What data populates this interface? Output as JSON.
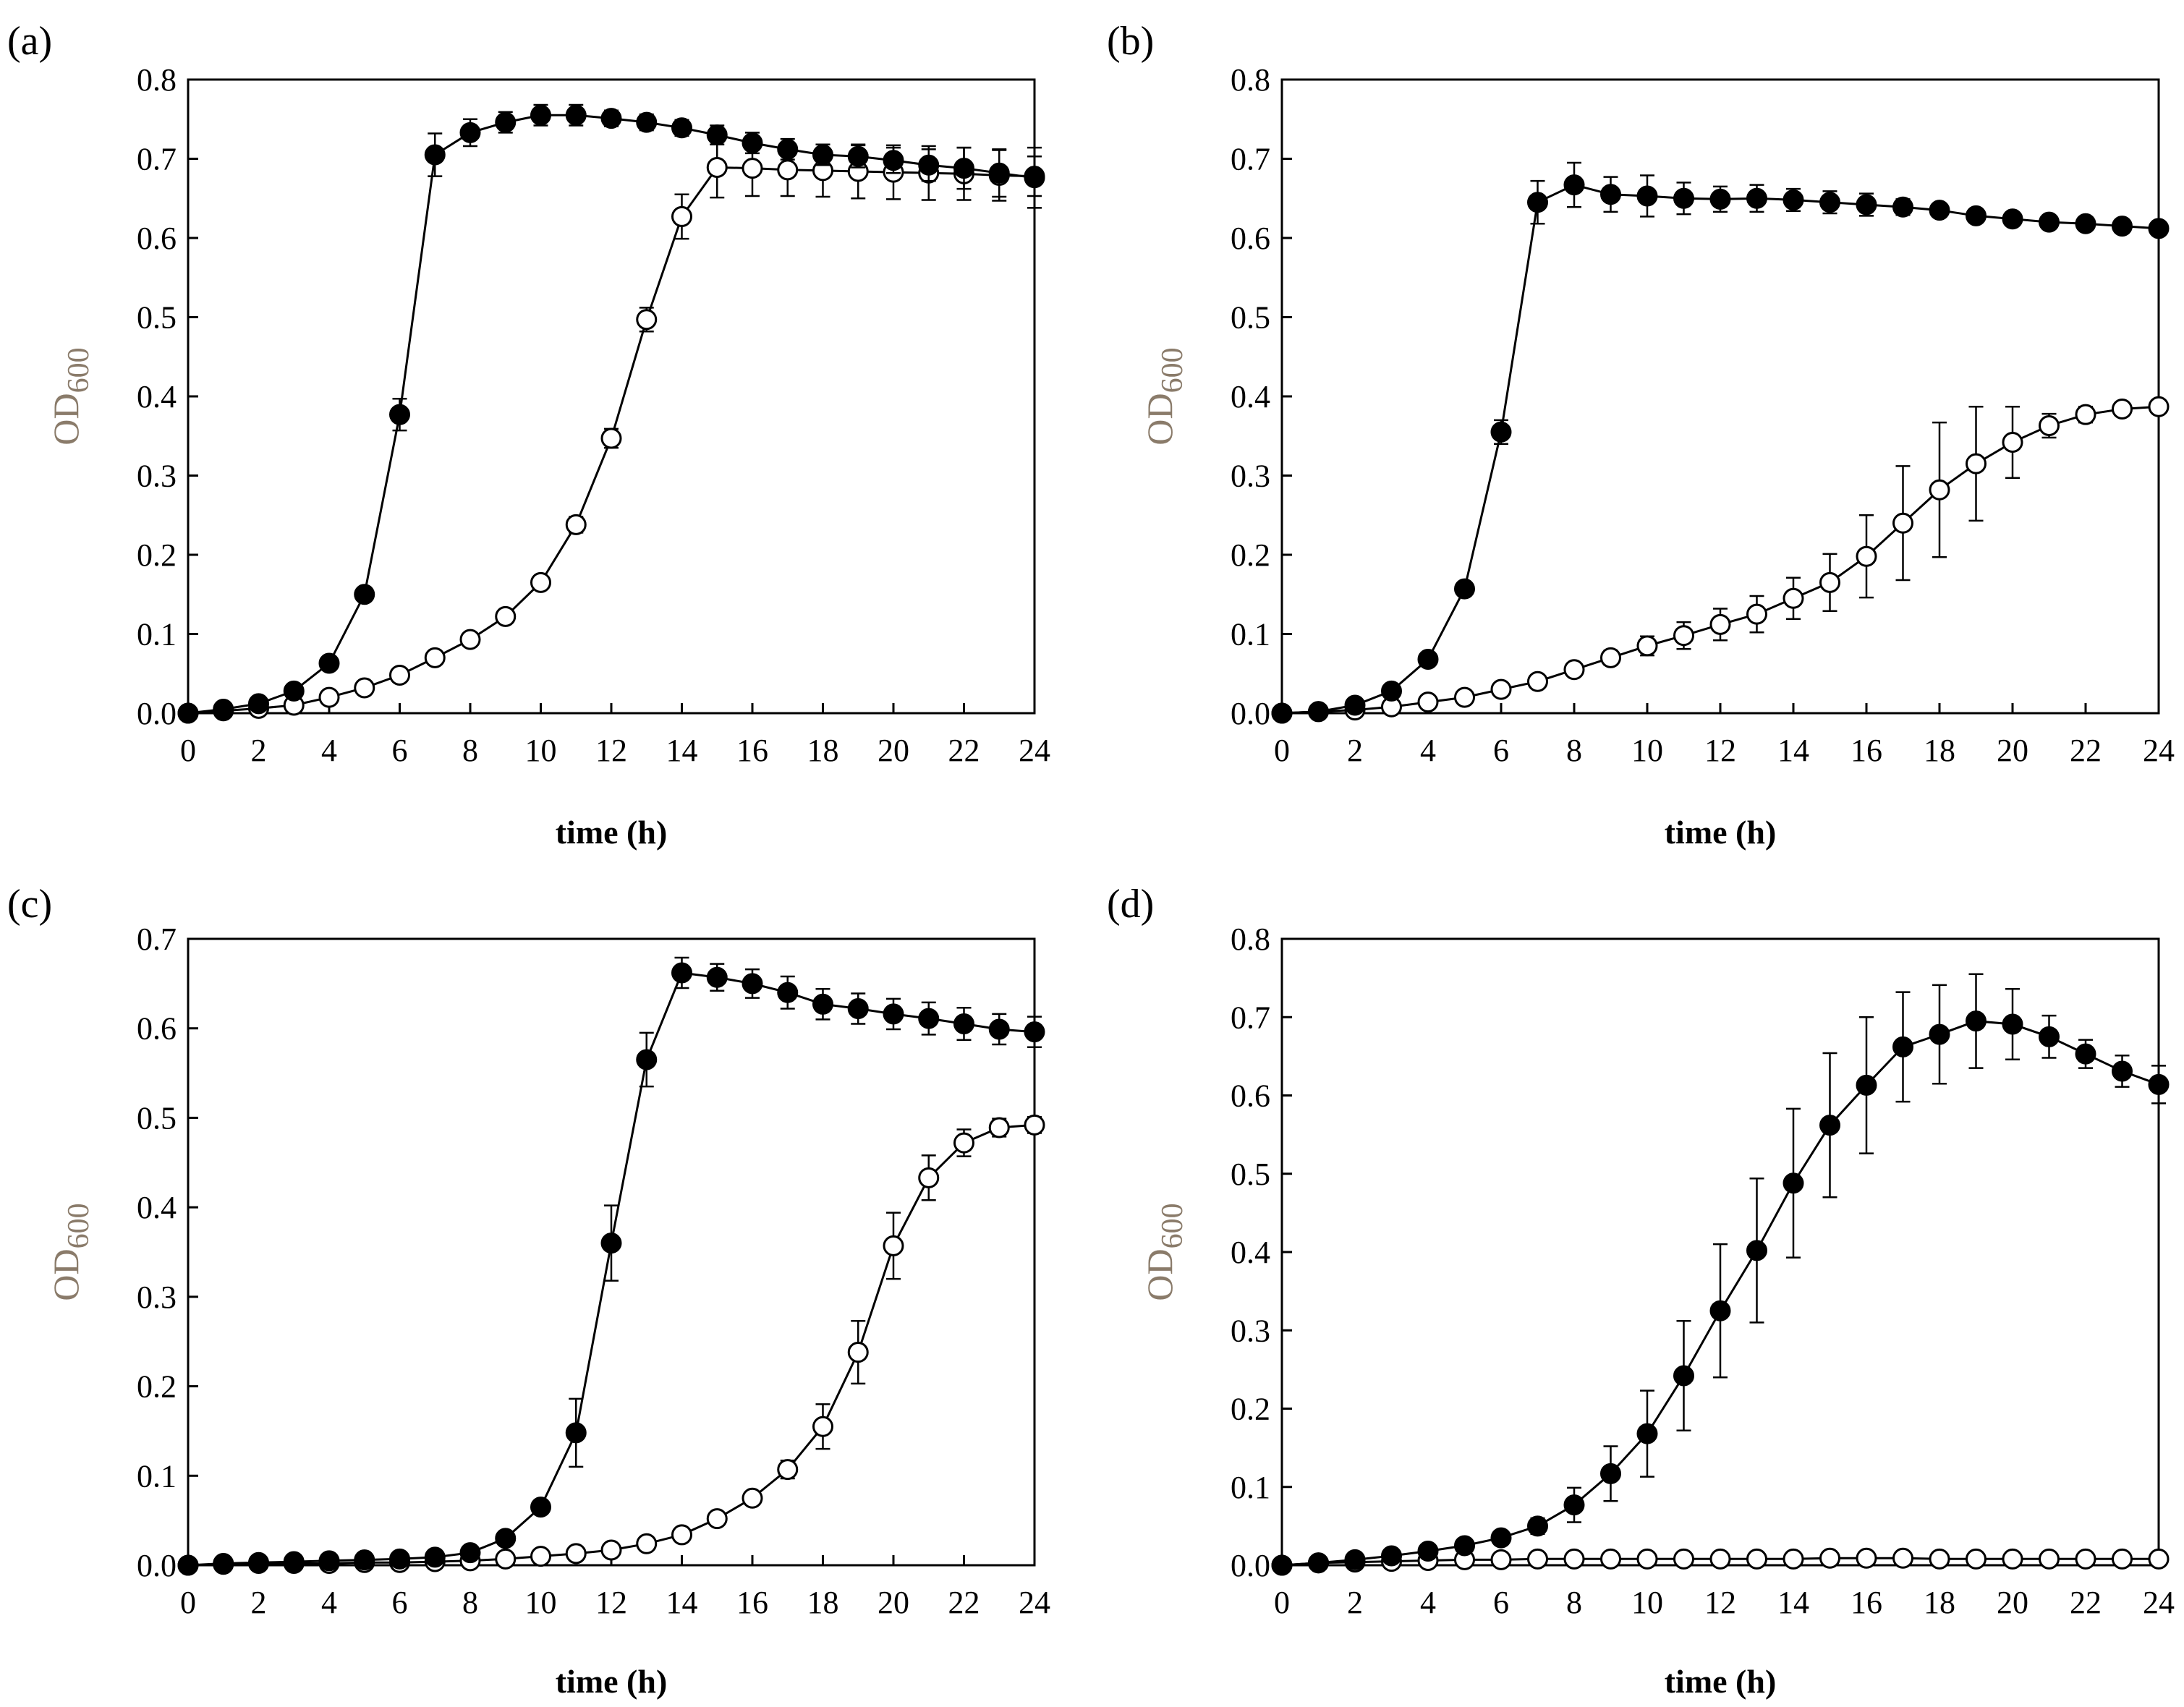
{
  "figure": {
    "background": "#ffffff",
    "frame_color": "#000000",
    "ylabel_color": "#8a7b6a"
  },
  "chart_data": [
    {
      "panel": "(a)",
      "type": "line",
      "xlabel": "time (h)",
      "ylabel": "OD",
      "ylabel_sub": "600",
      "xlim": [
        0,
        24
      ],
      "ylim": [
        0,
        0.8
      ],
      "xticks": [
        0,
        2,
        4,
        6,
        8,
        10,
        12,
        14,
        16,
        18,
        20,
        22,
        24
      ],
      "xtick_labels": [
        "0",
        "2",
        "4",
        "6",
        "8",
        "10",
        "12",
        "14",
        "16",
        "18",
        "20",
        "22",
        "24"
      ],
      "yticks": [
        0,
        0.1,
        0.2,
        0.3,
        0.4,
        0.5,
        0.6,
        0.7,
        0.8
      ],
      "ytick_labels": [
        "0.0",
        "0.1",
        "0.2",
        "0.3",
        "0.4",
        "0.5",
        "0.6",
        "0.7",
        "0.8"
      ],
      "x": [
        0,
        1,
        2,
        3,
        4,
        5,
        6,
        7,
        8,
        9,
        10,
        11,
        12,
        13,
        14,
        15,
        16,
        17,
        18,
        19,
        20,
        21,
        22,
        23,
        24
      ],
      "series": [
        {
          "name": "filled",
          "marker": "filled",
          "values": [
            0.0,
            0.005,
            0.012,
            0.028,
            0.063,
            0.15,
            0.377,
            0.705,
            0.733,
            0.746,
            0.755,
            0.755,
            0.751,
            0.746,
            0.739,
            0.73,
            0.72,
            0.712,
            0.705,
            0.703,
            0.698,
            0.692,
            0.688,
            0.682,
            0.676
          ],
          "errors": [
            0,
            0.002,
            0.003,
            0.004,
            0.005,
            0.008,
            0.02,
            0.027,
            0.017,
            0.013,
            0.013,
            0.013,
            0.01,
            0.01,
            0.01,
            0.012,
            0.013,
            0.013,
            0.013,
            0.014,
            0.016,
            0.02,
            0.026,
            0.03,
            0.038
          ]
        },
        {
          "name": "open",
          "marker": "open",
          "values": [
            0.0,
            0.003,
            0.006,
            0.01,
            0.02,
            0.032,
            0.048,
            0.07,
            0.093,
            0.122,
            0.165,
            0.238,
            0.347,
            0.497,
            0.627,
            0.689,
            0.688,
            0.686,
            0.685,
            0.684,
            0.683,
            0.682,
            0.681,
            0.679,
            0.678
          ],
          "errors": [
            0,
            0.001,
            0.002,
            0.002,
            0.003,
            0.004,
            0.004,
            0.005,
            0.006,
            0.007,
            0.008,
            0.01,
            0.012,
            0.015,
            0.028,
            0.038,
            0.035,
            0.033,
            0.033,
            0.034,
            0.034,
            0.034,
            0.033,
            0.032,
            0.025
          ]
        }
      ]
    },
    {
      "panel": "(b)",
      "type": "line",
      "xlabel": "time (h)",
      "ylabel": "OD",
      "ylabel_sub": "600",
      "xlim": [
        0,
        24
      ],
      "ylim": [
        0,
        0.8
      ],
      "xticks": [
        0,
        2,
        4,
        6,
        8,
        10,
        12,
        14,
        16,
        18,
        20,
        22,
        24
      ],
      "xtick_labels": [
        "0",
        "2",
        "4",
        "6",
        "8",
        "10",
        "12",
        "14",
        "16",
        "18",
        "20",
        "22",
        "24"
      ],
      "yticks": [
        0,
        0.1,
        0.2,
        0.3,
        0.4,
        0.5,
        0.6,
        0.7,
        0.8
      ],
      "ytick_labels": [
        "0.0",
        "0.1",
        "0.2",
        "0.3",
        "0.4",
        "0.5",
        "0.6",
        "0.7",
        "0.8"
      ],
      "x": [
        0,
        1,
        2,
        3,
        4,
        5,
        6,
        7,
        8,
        9,
        10,
        11,
        12,
        13,
        14,
        15,
        16,
        17,
        18,
        19,
        20,
        21,
        22,
        23,
        24
      ],
      "series": [
        {
          "name": "filled",
          "marker": "filled",
          "values": [
            0.0,
            0.002,
            0.01,
            0.028,
            0.068,
            0.157,
            0.355,
            0.645,
            0.667,
            0.655,
            0.653,
            0.65,
            0.649,
            0.65,
            0.648,
            0.645,
            0.642,
            0.639,
            0.635,
            0.628,
            0.624,
            0.62,
            0.618,
            0.615,
            0.612
          ],
          "errors": [
            0,
            0.001,
            0.003,
            0.005,
            0.006,
            0.008,
            0.015,
            0.027,
            0.028,
            0.022,
            0.026,
            0.02,
            0.016,
            0.017,
            0.014,
            0.014,
            0.014,
            0.01,
            0.007,
            0.006,
            0.006,
            0.005,
            0.005,
            0.006,
            0.007
          ]
        },
        {
          "name": "open",
          "marker": "open",
          "values": [
            0.0,
            0.002,
            0.004,
            0.008,
            0.014,
            0.02,
            0.03,
            0.04,
            0.055,
            0.07,
            0.085,
            0.098,
            0.112,
            0.125,
            0.145,
            0.165,
            0.198,
            0.24,
            0.282,
            0.315,
            0.342,
            0.363,
            0.377,
            0.384,
            0.387
          ],
          "errors": [
            0,
            0.001,
            0.002,
            0.002,
            0.003,
            0.004,
            0.005,
            0.006,
            0.007,
            0.009,
            0.012,
            0.017,
            0.02,
            0.023,
            0.026,
            0.036,
            0.052,
            0.072,
            0.085,
            0.072,
            0.045,
            0.015,
            0.01,
            0.008,
            0.008
          ]
        }
      ]
    },
    {
      "panel": "(c)",
      "type": "line",
      "xlabel": "time (h)",
      "ylabel": "OD",
      "ylabel_sub": "600",
      "xlim": [
        0,
        24
      ],
      "ylim": [
        0,
        0.7
      ],
      "xticks": [
        0,
        2,
        4,
        6,
        8,
        10,
        12,
        14,
        16,
        18,
        20,
        22,
        24
      ],
      "xtick_labels": [
        "0",
        "2",
        "4",
        "6",
        "8",
        "10",
        "12",
        "14",
        "16",
        "18",
        "20",
        "22",
        "24"
      ],
      "yticks": [
        0,
        0.1,
        0.2,
        0.3,
        0.4,
        0.5,
        0.6,
        0.7
      ],
      "ytick_labels": [
        "0.0",
        "0.1",
        "0.2",
        "0.3",
        "0.4",
        "0.5",
        "0.6",
        "0.7"
      ],
      "x": [
        0,
        1,
        2,
        3,
        4,
        5,
        6,
        7,
        8,
        9,
        10,
        11,
        12,
        13,
        14,
        15,
        16,
        17,
        18,
        19,
        20,
        21,
        22,
        23,
        24
      ],
      "series": [
        {
          "name": "filled",
          "marker": "filled",
          "values": [
            0.0,
            0.002,
            0.003,
            0.004,
            0.005,
            0.006,
            0.007,
            0.009,
            0.014,
            0.03,
            0.065,
            0.148,
            0.36,
            0.565,
            0.662,
            0.657,
            0.65,
            0.64,
            0.627,
            0.622,
            0.616,
            0.611,
            0.605,
            0.599,
            0.596
          ],
          "errors": [
            0,
            0.001,
            0.001,
            0.002,
            0.002,
            0.002,
            0.003,
            0.003,
            0.004,
            0.005,
            0.007,
            0.038,
            0.042,
            0.03,
            0.017,
            0.015,
            0.016,
            0.018,
            0.017,
            0.017,
            0.017,
            0.018,
            0.018,
            0.017,
            0.017
          ]
        },
        {
          "name": "open",
          "marker": "open",
          "values": [
            0.0,
            0.001,
            0.002,
            0.002,
            0.002,
            0.003,
            0.003,
            0.004,
            0.005,
            0.007,
            0.01,
            0.013,
            0.017,
            0.024,
            0.034,
            0.052,
            0.075,
            0.107,
            0.155,
            0.238,
            0.357,
            0.433,
            0.472,
            0.489,
            0.492
          ],
          "errors": [
            0,
            0.001,
            0.001,
            0.001,
            0.001,
            0.001,
            0.001,
            0.002,
            0.002,
            0.002,
            0.002,
            0.003,
            0.003,
            0.004,
            0.004,
            0.005,
            0.006,
            0.01,
            0.025,
            0.035,
            0.037,
            0.025,
            0.015,
            0.01,
            0.009
          ]
        }
      ]
    },
    {
      "panel": "(d)",
      "type": "line",
      "xlabel": "time (h)",
      "ylabel": "OD",
      "ylabel_sub": "600",
      "xlim": [
        0,
        24
      ],
      "ylim": [
        0,
        0.8
      ],
      "xticks": [
        0,
        2,
        4,
        6,
        8,
        10,
        12,
        14,
        16,
        18,
        20,
        22,
        24
      ],
      "xtick_labels": [
        "0",
        "2",
        "4",
        "6",
        "8",
        "10",
        "12",
        "14",
        "16",
        "18",
        "20",
        "22",
        "24"
      ],
      "yticks": [
        0,
        0.1,
        0.2,
        0.3,
        0.4,
        0.5,
        0.6,
        0.7,
        0.8
      ],
      "ytick_labels": [
        "0.0",
        "0.1",
        "0.2",
        "0.3",
        "0.4",
        "0.5",
        "0.6",
        "0.7",
        "0.8"
      ],
      "x": [
        0,
        1,
        2,
        3,
        4,
        5,
        6,
        7,
        8,
        9,
        10,
        11,
        12,
        13,
        14,
        15,
        16,
        17,
        18,
        19,
        20,
        21,
        22,
        23,
        24
      ],
      "series": [
        {
          "name": "filled",
          "marker": "filled",
          "values": [
            0.0,
            0.003,
            0.007,
            0.012,
            0.018,
            0.025,
            0.035,
            0.05,
            0.077,
            0.117,
            0.168,
            0.242,
            0.325,
            0.402,
            0.488,
            0.562,
            0.613,
            0.662,
            0.678,
            0.695,
            0.691,
            0.675,
            0.653,
            0.631,
            0.614
          ],
          "errors": [
            0,
            0.001,
            0.002,
            0.003,
            0.004,
            0.005,
            0.006,
            0.01,
            0.022,
            0.035,
            0.055,
            0.07,
            0.085,
            0.092,
            0.095,
            0.092,
            0.087,
            0.07,
            0.063,
            0.06,
            0.045,
            0.027,
            0.018,
            0.02,
            0.024
          ]
        },
        {
          "name": "open",
          "marker": "open",
          "values": [
            0.0,
            0.003,
            0.004,
            0.005,
            0.006,
            0.007,
            0.007,
            0.008,
            0.008,
            0.008,
            0.008,
            0.008,
            0.008,
            0.008,
            0.008,
            0.009,
            0.009,
            0.009,
            0.008,
            0.008,
            0.008,
            0.008,
            0.008,
            0.008,
            0.008
          ],
          "errors": [
            0,
            0.001,
            0.001,
            0.001,
            0.001,
            0.001,
            0.001,
            0.001,
            0.001,
            0.001,
            0.001,
            0.001,
            0.001,
            0.001,
            0.001,
            0.002,
            0.002,
            0.002,
            0.002,
            0.002,
            0.002,
            0.002,
            0.002,
            0.002,
            0.002
          ]
        }
      ]
    }
  ]
}
